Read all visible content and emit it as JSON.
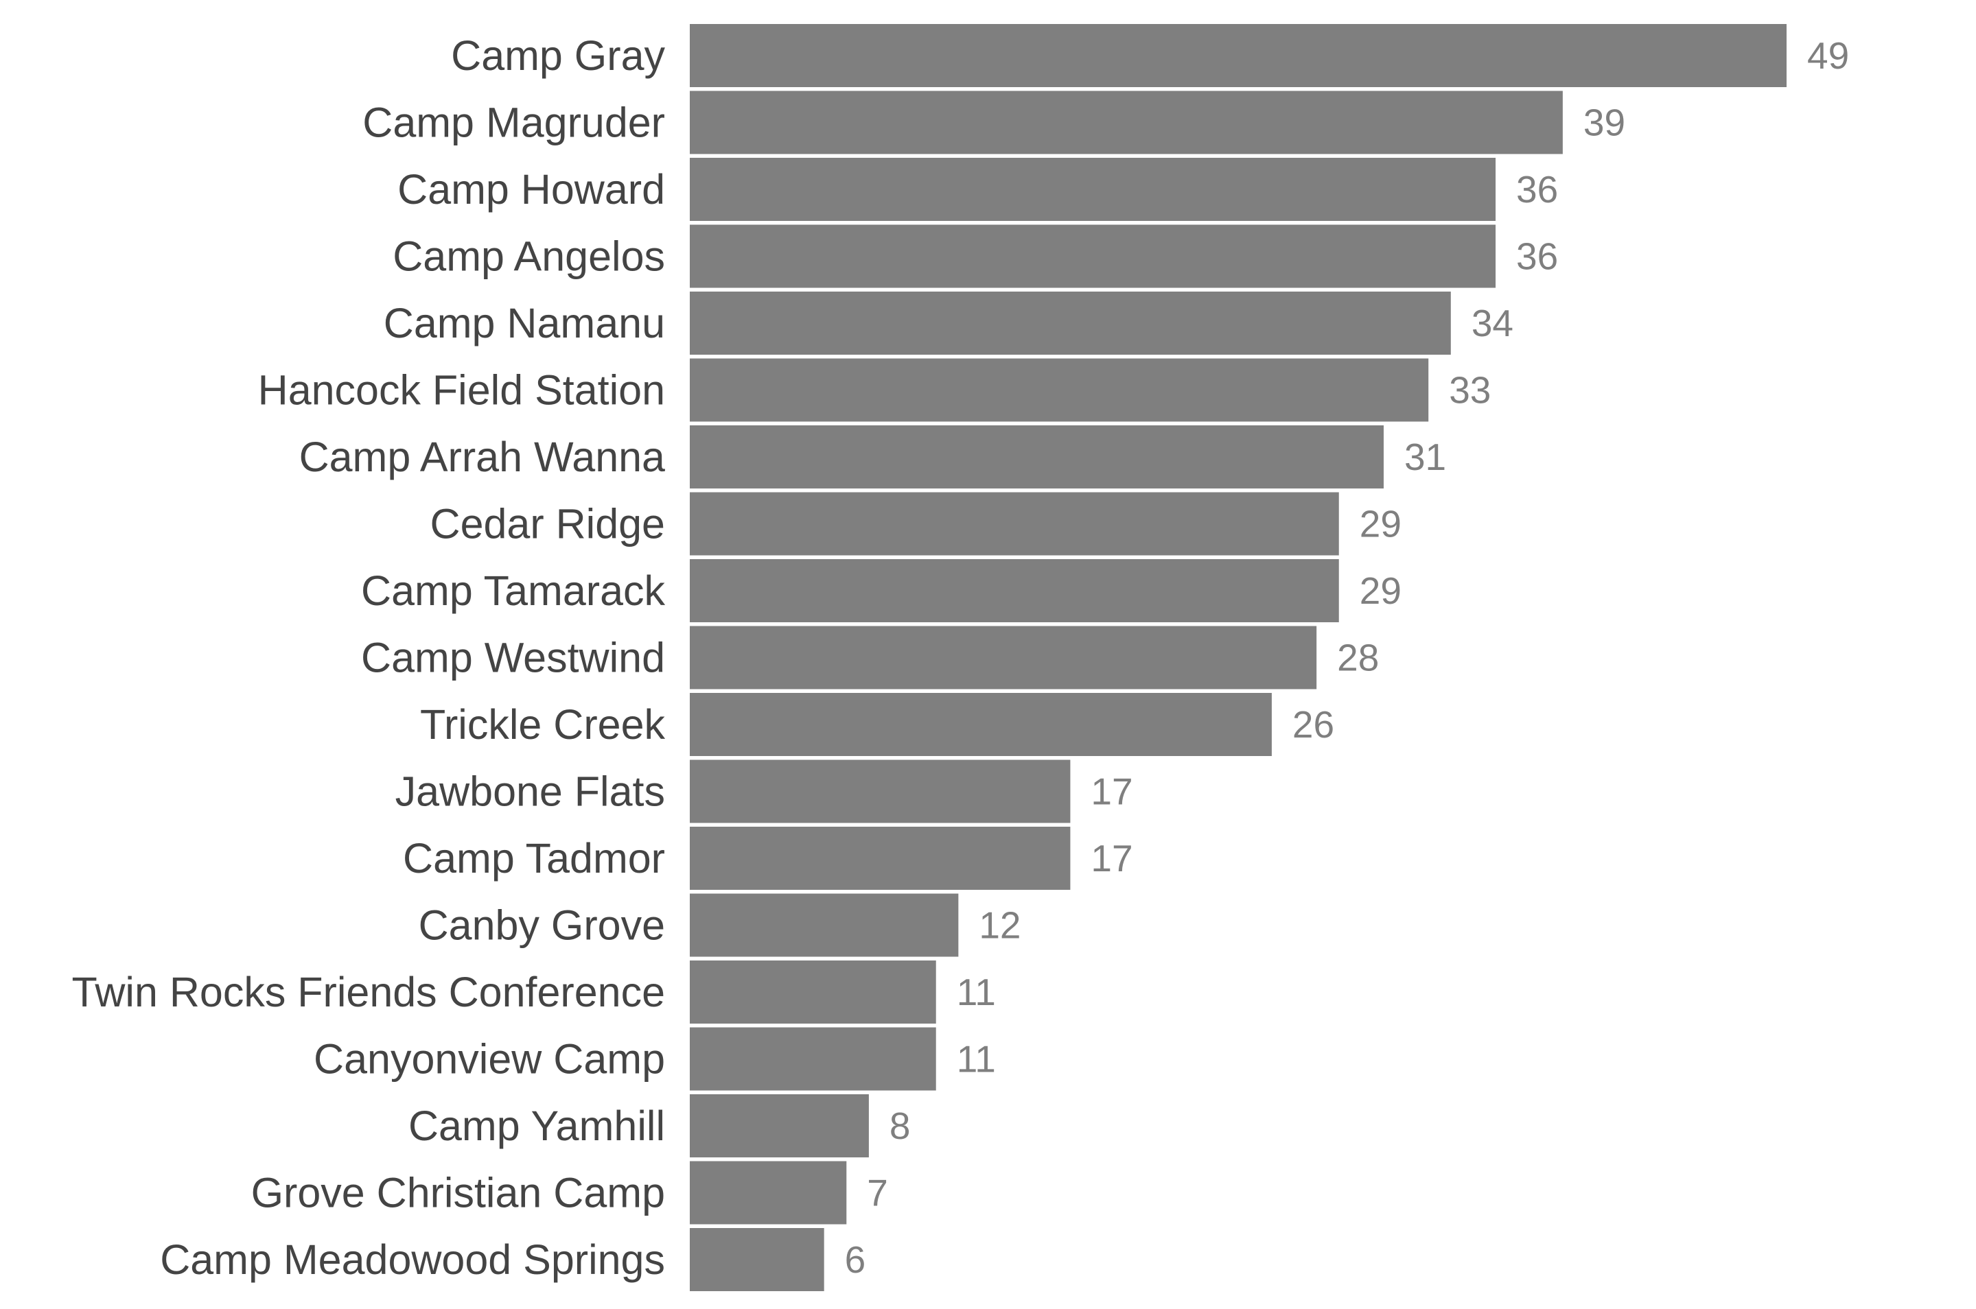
{
  "chart_data": {
    "type": "bar",
    "orientation": "horizontal",
    "title": "",
    "xlabel": "",
    "ylabel": "",
    "categories": [
      "Camp Gray",
      "Camp Magruder",
      "Camp Howard",
      "Camp Angelos",
      "Camp Namanu",
      "Hancock Field Station",
      "Camp Arrah Wanna",
      "Cedar Ridge",
      "Camp Tamarack",
      "Camp Westwind",
      "Trickle Creek",
      "Jawbone Flats",
      "Camp Tadmor",
      "Canby Grove",
      "Twin Rocks Friends Conference",
      "Canyonview Camp",
      "Camp Yamhill",
      "Grove Christian Camp",
      "Camp Meadowood Springs"
    ],
    "values": [
      49,
      39,
      36,
      36,
      34,
      33,
      31,
      29,
      29,
      28,
      26,
      17,
      17,
      12,
      11,
      11,
      8,
      7,
      6
    ],
    "xlim": [
      0,
      49
    ],
    "grid": false,
    "legend": "none",
    "data_labels": true,
    "colors": {
      "bar": "#7f7f7f",
      "category_text": "#444444",
      "value_text": "#7f7f7f"
    }
  }
}
